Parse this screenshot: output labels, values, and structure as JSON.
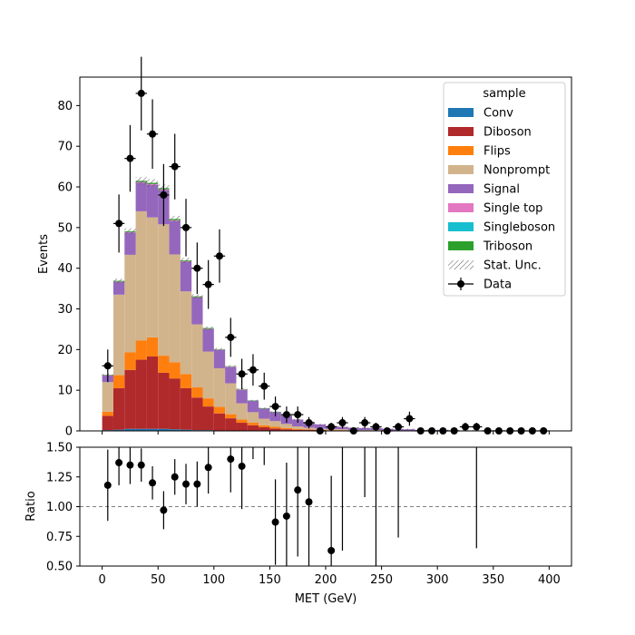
{
  "chart_data": [
    {
      "type": "stacked-histogram",
      "ylabel": "Events",
      "xlim": [
        -20,
        420
      ],
      "ylim": [
        0,
        87
      ],
      "yticks": [
        0,
        10,
        20,
        30,
        40,
        50,
        60,
        70,
        80
      ],
      "bin_edges": [
        0,
        10,
        20,
        30,
        40,
        50,
        60,
        70,
        80,
        90,
        100,
        110,
        120,
        130,
        140,
        150,
        160,
        170,
        180,
        190,
        200,
        210,
        220,
        230,
        240,
        250,
        260,
        270,
        280,
        290,
        300,
        310,
        320,
        330,
        340,
        350,
        360,
        370,
        380,
        390,
        400
      ],
      "legend": {
        "title": "sample",
        "position": "top-right",
        "entries": [
          "Conv",
          "Diboson",
          "Flips",
          "Nonprompt",
          "Signal",
          "Single top",
          "Singleboson",
          "Triboson",
          "Stat. Unc.",
          "Data"
        ]
      },
      "series": [
        {
          "name": "Conv",
          "color": "#1f77b4",
          "values": [
            0.2,
            0.3,
            0.5,
            0.5,
            0.5,
            0.5,
            0.4,
            0.3,
            0.2,
            0.2,
            0.1,
            0.1,
            0,
            0,
            0,
            0,
            0,
            0,
            0,
            0,
            0,
            0,
            0,
            0,
            0,
            0,
            0,
            0,
            0,
            0,
            0,
            0,
            0,
            0,
            0,
            0,
            0,
            0,
            0,
            0
          ]
        },
        {
          "name": "Diboson",
          "color": "#b0292b",
          "values": [
            3.5,
            10.2,
            14.5,
            17.0,
            17.8,
            13.8,
            12.5,
            10.2,
            8.0,
            5.8,
            4.2,
            3.0,
            2.0,
            1.4,
            0.9,
            0.6,
            0.4,
            0.3,
            0.3,
            0.2,
            0.1,
            0.1,
            0.1,
            0.1,
            0.1,
            0,
            0,
            0,
            0,
            0,
            0,
            0,
            0,
            0,
            0,
            0,
            0,
            0,
            0,
            0
          ]
        },
        {
          "name": "Flips",
          "color": "#ff7f0e",
          "values": [
            1.0,
            3.2,
            4.3,
            4.7,
            4.7,
            4.2,
            4.0,
            3.5,
            2.5,
            2.0,
            1.6,
            1.0,
            0.8,
            0.6,
            0.5,
            0.4,
            0.3,
            0.2,
            0.1,
            0.1,
            0.1,
            0.1,
            0,
            0,
            0,
            0,
            0,
            0,
            0,
            0,
            0,
            0,
            0,
            0,
            0,
            0,
            0,
            0,
            0,
            0
          ]
        },
        {
          "name": "Nonprompt",
          "color": "#d2b48c",
          "values": [
            7.3,
            19.8,
            24.0,
            31.8,
            29.5,
            32.3,
            26.5,
            20.3,
            15.5,
            11.5,
            9.5,
            7.6,
            4.0,
            2.6,
            1.6,
            1.4,
            1.0,
            0.6,
            0.4,
            0.3,
            0.2,
            0.2,
            0.1,
            0.1,
            0.1,
            0.1,
            0.1,
            0.1,
            0,
            0,
            0,
            0,
            0,
            0,
            0,
            0,
            0,
            0,
            0,
            0
          ]
        },
        {
          "name": "Signal",
          "color": "#9467bd",
          "values": [
            1.6,
            3.1,
            5.5,
            7.0,
            8.0,
            8.4,
            8.2,
            7.3,
            6.6,
            5.5,
            4.5,
            4.0,
            3.3,
            2.8,
            2.5,
            2.2,
            2.0,
            1.7,
            1.4,
            1.0,
            0.8,
            0.6,
            0.6,
            0.5,
            0.5,
            0.4,
            0.3,
            0.3,
            0.2,
            0.2,
            0.2,
            0.1,
            0.1,
            0.1,
            0.1,
            0.1,
            0.1,
            0.1,
            0.1,
            0.1
          ]
        },
        {
          "name": "Single top",
          "color": "#e377c2",
          "values": [
            0.1,
            0.1,
            0.1,
            0.2,
            0.2,
            0.2,
            0.2,
            0.1,
            0.1,
            0.1,
            0.1,
            0.1,
            0.1,
            0,
            0,
            0,
            0,
            0,
            0,
            0,
            0,
            0,
            0,
            0,
            0,
            0,
            0,
            0,
            0,
            0,
            0,
            0,
            0,
            0,
            0,
            0,
            0,
            0,
            0,
            0
          ]
        },
        {
          "name": "Singleboson",
          "color": "#17becf",
          "values": [
            0,
            0,
            0,
            0,
            0,
            0,
            0,
            0,
            0,
            0,
            0,
            0,
            0,
            0,
            0,
            0,
            0,
            0,
            0,
            0,
            0,
            0,
            0,
            0,
            0,
            0,
            0,
            0,
            0,
            0,
            0,
            0,
            0,
            0,
            0,
            0,
            0,
            0,
            0,
            0
          ]
        },
        {
          "name": "Triboson",
          "color": "#2ca02c",
          "values": [
            0.1,
            0.2,
            0.2,
            0.3,
            0.3,
            0.3,
            0.3,
            0.2,
            0.2,
            0.2,
            0.1,
            0.1,
            0.1,
            0.1,
            0.1,
            0.1,
            0.1,
            0,
            0,
            0,
            0,
            0,
            0,
            0,
            0,
            0,
            0,
            0,
            0,
            0,
            0,
            0,
            0,
            0,
            0,
            0,
            0,
            0,
            0,
            0
          ]
        }
      ],
      "stat_unc_fraction": 0.015,
      "data": {
        "name": "Data",
        "x": [
          5,
          15,
          25,
          35,
          45,
          55,
          65,
          75,
          85,
          95,
          105,
          115,
          125,
          135,
          145,
          155,
          165,
          175,
          185,
          195,
          205,
          215,
          225,
          235,
          245,
          255,
          265,
          275,
          285,
          295,
          305,
          315,
          325,
          335,
          345,
          355,
          365,
          375,
          385,
          395
        ],
        "y": [
          16,
          51,
          67,
          83,
          73,
          58,
          65,
          50,
          40,
          36,
          43,
          23,
          14,
          15,
          11,
          6,
          4,
          4,
          2,
          0,
          1,
          2,
          0,
          2,
          1,
          0,
          1,
          3,
          0,
          0,
          0,
          0,
          1,
          1,
          0,
          0,
          0,
          0,
          0,
          0
        ]
      }
    },
    {
      "type": "scatter",
      "xlabel": "MET (GeV)",
      "ylabel": "Ratio",
      "xlim": [
        -20,
        420
      ],
      "ylim": [
        0.5,
        1.5
      ],
      "xticks": [
        0,
        50,
        100,
        150,
        200,
        250,
        300,
        350,
        400
      ],
      "yticks": [
        0.5,
        0.75,
        1.0,
        1.25,
        1.5
      ],
      "ytick_labels": [
        "0.50",
        "0.75",
        "1.00",
        "1.25",
        "1.50"
      ],
      "reference_line": 1.0,
      "points": {
        "x": [
          5,
          15,
          25,
          35,
          45,
          55,
          65,
          75,
          85,
          95,
          115,
          125,
          155,
          165,
          175,
          185,
          205
        ],
        "y": [
          1.18,
          1.37,
          1.35,
          1.35,
          1.2,
          0.97,
          1.25,
          1.19,
          1.19,
          1.33,
          1.4,
          1.34,
          0.87,
          0.92,
          1.14,
          1.04,
          0.63
        ],
        "err_lo": [
          0.3,
          0.19,
          0.16,
          0.14,
          0.14,
          0.16,
          0.15,
          0.17,
          0.19,
          0.22,
          0.28,
          0.36,
          0.36,
          0.45,
          0.56,
          0.74,
          0.63
        ],
        "err_hi": [
          0.3,
          0.19,
          0.16,
          0.14,
          0.14,
          0.16,
          0.15,
          0.17,
          0.19,
          0.22,
          0.28,
          0.36,
          0.36,
          0.45,
          0.56,
          0.74,
          0.63
        ]
      },
      "bars_only": {
        "x": [
          135,
          145,
          215,
          235,
          245,
          265,
          335
        ],
        "y_lo": [
          1.4,
          1.35,
          0.63,
          1.08,
          0.5,
          0.74,
          0.65
        ],
        "y_hi": [
          1.5,
          1.5,
          1.5,
          1.5,
          1.5,
          1.5,
          1.5
        ]
      }
    }
  ]
}
